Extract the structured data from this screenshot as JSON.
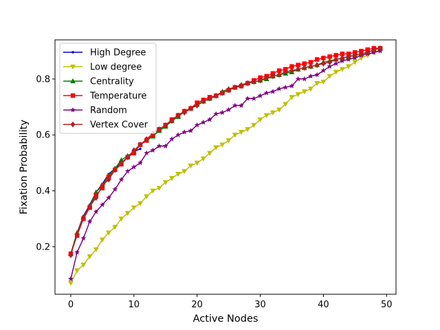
{
  "chart_data": {
    "type": "line",
    "xlabel": "Active Nodes",
    "ylabel": "Fixation Probability",
    "xlim": [
      -2.5,
      51.5
    ],
    "ylim": [
      0.03,
      0.94
    ],
    "xticks": [
      0,
      10,
      20,
      30,
      40,
      50
    ],
    "yticks": [
      0.2,
      0.4,
      0.6,
      0.8
    ],
    "xtick_labels": [
      "0",
      "10",
      "20",
      "30",
      "40",
      "50"
    ],
    "ytick_labels": [
      "0.2",
      "0.4",
      "0.6",
      "0.8"
    ],
    "grid": false,
    "legend_position": "upper-left",
    "series": [
      {
        "name": "High Degree",
        "color": "#0000cc",
        "marker": "point",
        "x": [
          0,
          1,
          2,
          3,
          4,
          5,
          6,
          7,
          8,
          9,
          10,
          11
        ],
        "values": [
          0.175,
          0.25,
          0.31,
          0.35,
          0.395,
          0.425,
          0.46,
          0.48,
          0.5,
          0.52,
          0.54,
          0.55
        ]
      },
      {
        "name": "Low degree",
        "color": "#bfbf00",
        "marker": "triangle-down",
        "x": [
          0,
          1,
          2,
          3,
          4,
          5,
          6,
          7,
          8,
          9,
          10,
          11,
          12,
          13,
          14,
          15,
          16,
          17,
          18,
          19,
          20,
          21,
          22,
          23,
          24,
          25,
          26,
          27,
          28,
          29,
          30,
          31,
          32,
          33,
          34,
          35,
          36,
          37,
          38,
          39,
          40,
          41,
          42,
          43,
          44,
          45,
          46,
          47,
          48,
          49
        ],
        "values": [
          0.07,
          0.115,
          0.135,
          0.165,
          0.19,
          0.225,
          0.25,
          0.27,
          0.3,
          0.32,
          0.34,
          0.355,
          0.38,
          0.4,
          0.41,
          0.43,
          0.445,
          0.46,
          0.47,
          0.49,
          0.5,
          0.515,
          0.535,
          0.555,
          0.565,
          0.58,
          0.6,
          0.61,
          0.62,
          0.635,
          0.655,
          0.67,
          0.68,
          0.69,
          0.71,
          0.735,
          0.745,
          0.755,
          0.765,
          0.785,
          0.79,
          0.81,
          0.825,
          0.835,
          0.845,
          0.86,
          0.875,
          0.885,
          0.895,
          0.905
        ]
      },
      {
        "name": "Centrality",
        "color": "#007f00",
        "marker": "triangle-up",
        "x": [
          0,
          1,
          2,
          3,
          4,
          5,
          6,
          7,
          8,
          9,
          10,
          11,
          12,
          13,
          14,
          15,
          16,
          17,
          18,
          19,
          20,
          21,
          22,
          23,
          24,
          25,
          26,
          27,
          28,
          29,
          30,
          31,
          32,
          33,
          34,
          35,
          36,
          37,
          38,
          39,
          40,
          41,
          42,
          43,
          44,
          45,
          46,
          47,
          48,
          49
        ],
        "values": [
          0.175,
          0.25,
          0.305,
          0.345,
          0.395,
          0.42,
          0.455,
          0.48,
          0.51,
          0.525,
          0.54,
          0.565,
          0.58,
          0.595,
          0.615,
          0.63,
          0.65,
          0.665,
          0.685,
          0.695,
          0.71,
          0.72,
          0.73,
          0.74,
          0.755,
          0.765,
          0.77,
          0.78,
          0.785,
          0.79,
          0.795,
          0.8,
          0.81,
          0.815,
          0.82,
          0.825,
          0.835,
          0.84,
          0.845,
          0.85,
          0.86,
          0.865,
          0.87,
          0.875,
          0.88,
          0.885,
          0.89,
          0.895,
          0.905,
          0.91
        ]
      },
      {
        "name": "Temperature",
        "color": "#ff0000",
        "marker": "square",
        "x": [
          0,
          1,
          2,
          3,
          4,
          5,
          6,
          7,
          8,
          9,
          10,
          11,
          12,
          13,
          14,
          15,
          16,
          17,
          18,
          19,
          20,
          21,
          22,
          23,
          24,
          25,
          26,
          27,
          28,
          29,
          30,
          31,
          32,
          33,
          34,
          35,
          36,
          37,
          38,
          39,
          40,
          41,
          42,
          43,
          44,
          45,
          46,
          47,
          48,
          49
        ],
        "values": [
          0.175,
          0.24,
          0.3,
          0.34,
          0.385,
          0.41,
          0.45,
          0.475,
          0.495,
          0.52,
          0.535,
          0.565,
          0.58,
          0.6,
          0.62,
          0.635,
          0.655,
          0.67,
          0.685,
          0.695,
          0.715,
          0.725,
          0.735,
          0.74,
          0.75,
          0.76,
          0.77,
          0.775,
          0.785,
          0.795,
          0.805,
          0.81,
          0.82,
          0.83,
          0.835,
          0.845,
          0.85,
          0.855,
          0.86,
          0.87,
          0.875,
          0.88,
          0.885,
          0.89,
          0.89,
          0.895,
          0.9,
          0.905,
          0.91,
          0.91
        ]
      },
      {
        "name": "Random",
        "color": "#800080",
        "marker": "star",
        "x": [
          0,
          1,
          2,
          3,
          4,
          5,
          6,
          7,
          8,
          9,
          10,
          11,
          12,
          13,
          14,
          15,
          16,
          17,
          18,
          19,
          20,
          21,
          22,
          23,
          24,
          25,
          26,
          27,
          28,
          29,
          30,
          31,
          32,
          33,
          34,
          35,
          36,
          37,
          38,
          39,
          40,
          41,
          42,
          43,
          44,
          45,
          46,
          47,
          48,
          49
        ],
        "values": [
          0.085,
          0.18,
          0.23,
          0.29,
          0.325,
          0.35,
          0.375,
          0.405,
          0.44,
          0.47,
          0.485,
          0.5,
          0.535,
          0.545,
          0.56,
          0.56,
          0.585,
          0.6,
          0.61,
          0.615,
          0.635,
          0.645,
          0.655,
          0.675,
          0.68,
          0.69,
          0.705,
          0.705,
          0.73,
          0.73,
          0.74,
          0.75,
          0.755,
          0.765,
          0.77,
          0.775,
          0.8,
          0.8,
          0.81,
          0.815,
          0.83,
          0.845,
          0.855,
          0.865,
          0.87,
          0.875,
          0.885,
          0.89,
          0.895,
          0.9
        ]
      },
      {
        "name": "Vertex Cover",
        "color": "#b22222",
        "marker": "diamond",
        "x": [
          0,
          1,
          2,
          3,
          4,
          5,
          6,
          7,
          8,
          9,
          10,
          11,
          12,
          13,
          14,
          15,
          16,
          17,
          18,
          19,
          20,
          21,
          22,
          23,
          24,
          25,
          26,
          27,
          28,
          29,
          30,
          31,
          32,
          33,
          34,
          35,
          36,
          37,
          38,
          39,
          40,
          41,
          42,
          43,
          44,
          45,
          46,
          47,
          48,
          49
        ],
        "values": [
          0.17,
          0.245,
          0.305,
          0.345,
          0.375,
          0.42,
          0.44,
          0.475,
          0.5,
          0.52,
          0.545,
          0.565,
          0.585,
          0.605,
          0.62,
          0.635,
          0.65,
          0.67,
          0.68,
          0.695,
          0.705,
          0.72,
          0.73,
          0.74,
          0.75,
          0.76,
          0.77,
          0.775,
          0.785,
          0.79,
          0.795,
          0.805,
          0.81,
          0.815,
          0.825,
          0.83,
          0.835,
          0.84,
          0.845,
          0.85,
          0.855,
          0.86,
          0.87,
          0.875,
          0.88,
          0.885,
          0.89,
          0.895,
          0.905,
          0.91
        ]
      }
    ]
  }
}
